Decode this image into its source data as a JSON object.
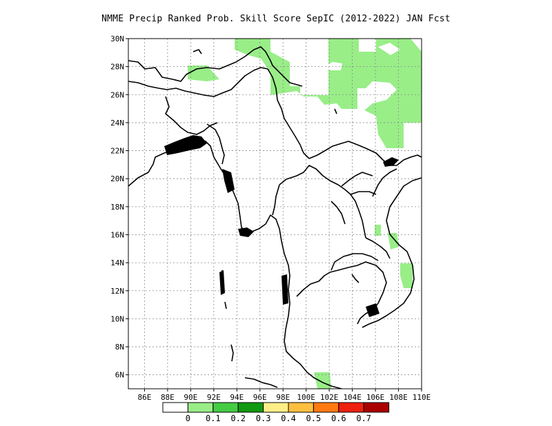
{
  "title": "NMME Precip Ranked Prob. Skill Score SepIC (2012-2022) JAN Fcst",
  "map": {
    "lon_labels": [
      "86E",
      "88E",
      "90E",
      "92E",
      "94E",
      "96E",
      "98E",
      "100E",
      "102E",
      "104E",
      "106E",
      "108E",
      "110E"
    ],
    "lat_labels": [
      "30N",
      "28N",
      "26N",
      "24N",
      "22N",
      "20N",
      "18N",
      "16N",
      "14N",
      "12N",
      "10N",
      "8N",
      "6N"
    ],
    "grid": "dotted",
    "skill_fill_color": "#99ee88",
    "coastline_color": "#000000"
  },
  "colorbar": {
    "colors": [
      "#ffffff",
      "#99ee88",
      "#44cc44",
      "#119911",
      "#ffee88",
      "#ffc040",
      "#ff7a10",
      "#ee2010",
      "#aa0000"
    ],
    "labels": [
      "0",
      "0.1",
      "0.2",
      "0.3",
      "0.4",
      "0.5",
      "0.6",
      "0.7"
    ]
  }
}
